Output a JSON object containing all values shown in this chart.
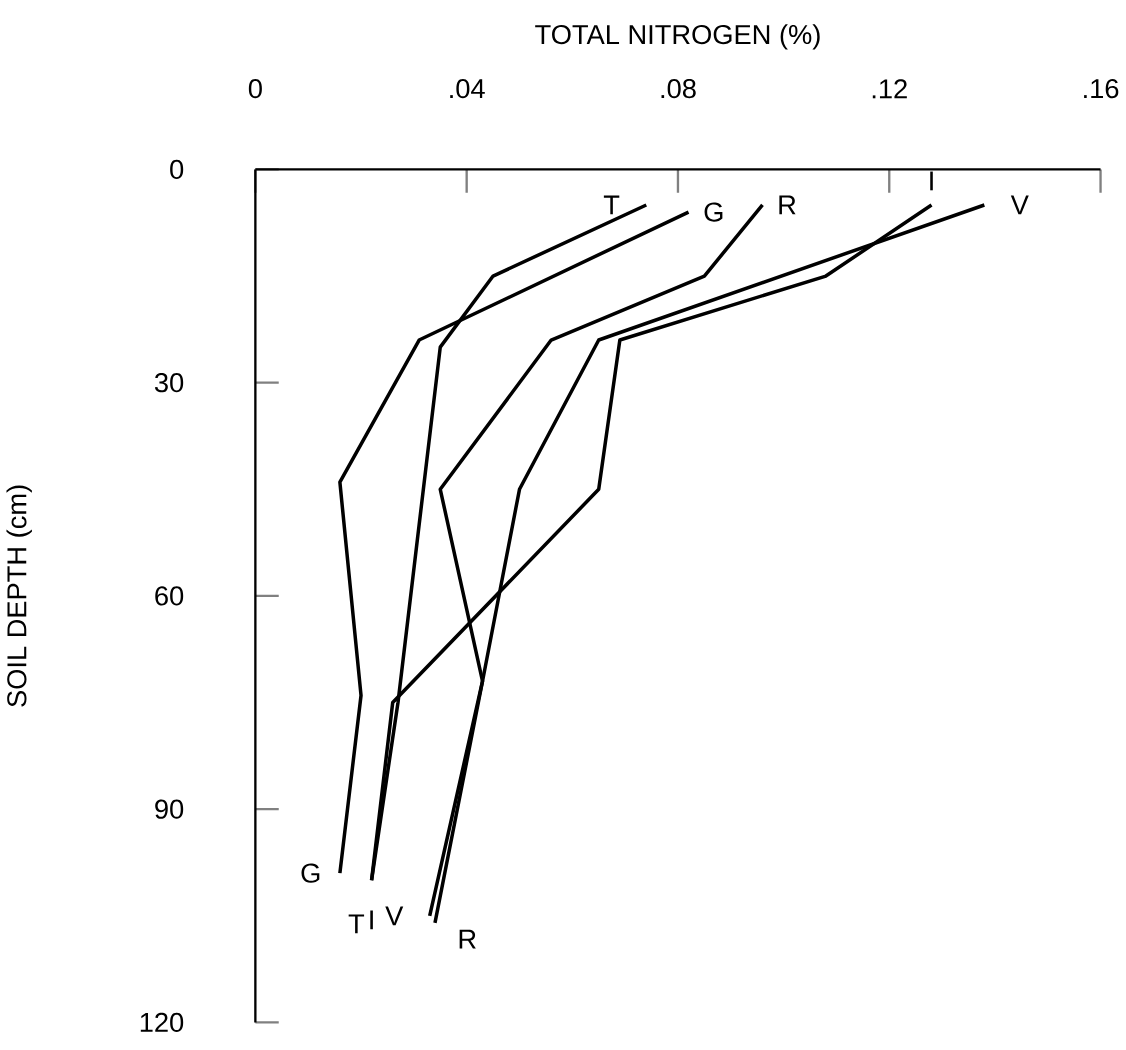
{
  "chart_data": {
    "type": "line",
    "xlabel": "TOTAL NITROGEN (%)",
    "ylabel": "SOIL DEPTH (cm)",
    "xlim": [
      0,
      0.16
    ],
    "ylim": [
      120,
      0
    ],
    "xticks": [
      0,
      {
        "value": 0.04,
        "label": ".04"
      },
      {
        "value": 0.08,
        "label": ".08"
      },
      {
        "value": 0.12,
        "label": ".12"
      },
      {
        "value": 0.16,
        "label": ".16"
      }
    ],
    "yticks": [
      0,
      30,
      60,
      90,
      120
    ],
    "marker": "none",
    "line_style": "solid",
    "series": [
      {
        "name": "T",
        "color": "#000000",
        "x": [
          0.074,
          0.045,
          0.035,
          0.027,
          0.022
        ],
        "values": [
          5,
          15,
          25,
          75,
          100
        ]
      },
      {
        "name": "G",
        "color": "#000000",
        "x": [
          0.082,
          0.031,
          0.016,
          0.02,
          0.016
        ],
        "values": [
          6,
          24,
          44,
          74,
          99
        ]
      },
      {
        "name": "R",
        "color": "#000000",
        "x": [
          0.096,
          0.085,
          0.056,
          0.035,
          0.043,
          0.034
        ],
        "values": [
          5,
          15,
          24,
          45,
          72,
          106
        ]
      },
      {
        "name": "I",
        "color": "#000000",
        "x": [
          0.128,
          0.108,
          0.069,
          0.065,
          0.026,
          0.022
        ],
        "values": [
          5,
          15,
          24,
          45,
          75,
          100
        ]
      },
      {
        "name": "V",
        "color": "#000000",
        "x": [
          0.138,
          0.065,
          0.05,
          0.043,
          0.033
        ],
        "values": [
          5,
          24,
          45,
          72,
          105
        ]
      }
    ]
  }
}
